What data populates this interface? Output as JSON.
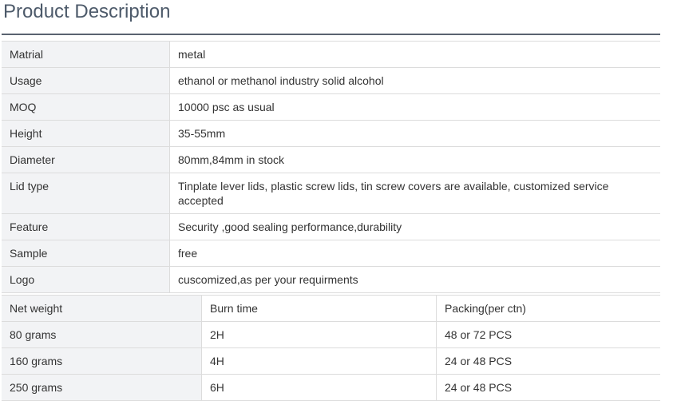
{
  "title": "Product Description",
  "specs": [
    {
      "label": "Matrial",
      "value": "metal"
    },
    {
      "label": "Usage",
      "value": "ethanol or methanol industry solid alcohol"
    },
    {
      "label": "MOQ",
      "value": "10000 psc as usual"
    },
    {
      "label": "Height",
      "value": "35-55mm"
    },
    {
      "label": "Diameter",
      "value": "80mm,84mm in stock"
    },
    {
      "label": "Lid type",
      "value": "Tinplate lever lids, plastic screw lids, tin screw covers are available, customized service accepted"
    },
    {
      "label": "Feature",
      "value": "Security ,good sealing performance,durability"
    },
    {
      "label": "Sample",
      "value": "free"
    },
    {
      "label": "Logo",
      "value": "cuscomized,as per your requirments"
    }
  ],
  "weights": {
    "headers": [
      "Net weight",
      "Burn time",
      "Packing(per ctn)"
    ],
    "rows": [
      [
        "80 grams",
        "2H",
        "48 or 72 PCS"
      ],
      [
        "160 grams",
        "4H",
        "24 or 48 PCS"
      ],
      [
        "250 grams",
        "6H",
        "24 or 48 PCS"
      ]
    ]
  }
}
